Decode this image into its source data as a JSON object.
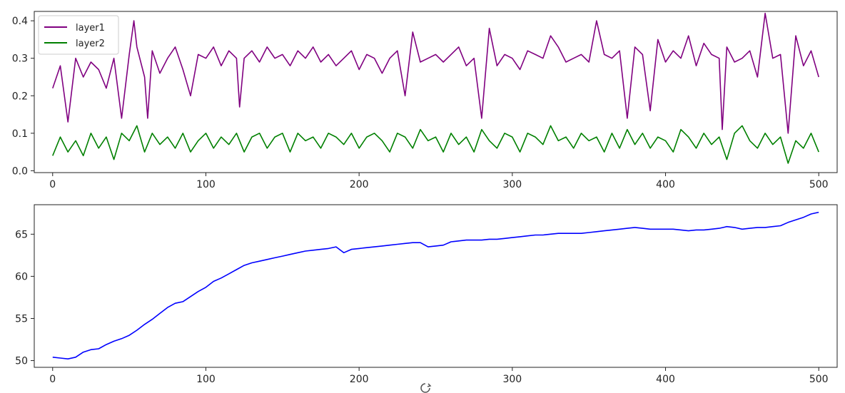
{
  "chart_data": [
    {
      "type": "line",
      "title": "",
      "xlabel": "",
      "ylabel": "",
      "xlim": [
        -12,
        512
      ],
      "ylim": [
        -0.005,
        0.425
      ],
      "xticks": [
        0,
        100,
        200,
        300,
        400,
        500
      ],
      "yticks": [
        0.0,
        0.1,
        0.2,
        0.3,
        0.4
      ],
      "xtick_labels": [
        "0",
        "100",
        "200",
        "300",
        "400",
        "500"
      ],
      "ytick_labels": [
        "0.0",
        "0.1",
        "0.2",
        "0.3",
        "0.4"
      ],
      "grid": false,
      "legend_position": "top-left",
      "series": [
        {
          "name": "layer1",
          "color": "#800080",
          "x": [
            0,
            5,
            10,
            15,
            20,
            25,
            30,
            35,
            40,
            45,
            50,
            53,
            55,
            60,
            62,
            65,
            70,
            75,
            80,
            85,
            90,
            95,
            100,
            105,
            110,
            115,
            120,
            122,
            125,
            130,
            135,
            140,
            145,
            150,
            155,
            160,
            165,
            170,
            175,
            180,
            185,
            190,
            195,
            200,
            205,
            210,
            215,
            220,
            225,
            230,
            235,
            240,
            245,
            250,
            255,
            260,
            265,
            270,
            275,
            280,
            285,
            290,
            295,
            300,
            305,
            310,
            315,
            320,
            325,
            330,
            335,
            340,
            345,
            350,
            355,
            360,
            365,
            370,
            375,
            380,
            385,
            390,
            395,
            400,
            405,
            410,
            415,
            420,
            425,
            430,
            435,
            437,
            440,
            445,
            450,
            455,
            460,
            465,
            470,
            475,
            480,
            485,
            490,
            495,
            500
          ],
          "y": [
            0.22,
            0.28,
            0.13,
            0.3,
            0.25,
            0.29,
            0.27,
            0.22,
            0.3,
            0.14,
            0.31,
            0.4,
            0.33,
            0.25,
            0.14,
            0.32,
            0.26,
            0.3,
            0.33,
            0.27,
            0.2,
            0.31,
            0.3,
            0.33,
            0.28,
            0.32,
            0.3,
            0.17,
            0.3,
            0.32,
            0.29,
            0.33,
            0.3,
            0.31,
            0.28,
            0.32,
            0.3,
            0.33,
            0.29,
            0.31,
            0.28,
            0.3,
            0.32,
            0.27,
            0.31,
            0.3,
            0.26,
            0.3,
            0.32,
            0.2,
            0.37,
            0.29,
            0.3,
            0.31,
            0.29,
            0.31,
            0.33,
            0.28,
            0.3,
            0.14,
            0.38,
            0.28,
            0.31,
            0.3,
            0.27,
            0.32,
            0.31,
            0.3,
            0.36,
            0.33,
            0.29,
            0.3,
            0.31,
            0.29,
            0.4,
            0.31,
            0.3,
            0.32,
            0.14,
            0.33,
            0.31,
            0.16,
            0.35,
            0.29,
            0.32,
            0.3,
            0.36,
            0.28,
            0.34,
            0.31,
            0.3,
            0.11,
            0.33,
            0.29,
            0.3,
            0.32,
            0.25,
            0.42,
            0.3,
            0.31,
            0.1,
            0.36,
            0.28,
            0.32,
            0.25
          ]
        },
        {
          "name": "layer2",
          "color": "#008000",
          "x": [
            0,
            5,
            10,
            15,
            20,
            25,
            30,
            35,
            40,
            45,
            50,
            55,
            60,
            65,
            70,
            75,
            80,
            85,
            90,
            95,
            100,
            105,
            110,
            115,
            120,
            125,
            130,
            135,
            140,
            145,
            150,
            155,
            160,
            165,
            170,
            175,
            180,
            185,
            190,
            195,
            200,
            205,
            210,
            215,
            220,
            225,
            230,
            235,
            240,
            245,
            250,
            255,
            260,
            265,
            270,
            275,
            280,
            285,
            290,
            295,
            300,
            305,
            310,
            315,
            320,
            325,
            330,
            335,
            340,
            345,
            350,
            355,
            360,
            365,
            370,
            375,
            380,
            385,
            390,
            395,
            400,
            405,
            410,
            415,
            420,
            425,
            430,
            435,
            440,
            445,
            450,
            455,
            460,
            465,
            470,
            475,
            480,
            485,
            490,
            495,
            500
          ],
          "y": [
            0.04,
            0.09,
            0.05,
            0.08,
            0.04,
            0.1,
            0.06,
            0.09,
            0.03,
            0.1,
            0.08,
            0.12,
            0.05,
            0.1,
            0.07,
            0.09,
            0.06,
            0.1,
            0.05,
            0.08,
            0.1,
            0.06,
            0.09,
            0.07,
            0.1,
            0.05,
            0.09,
            0.1,
            0.06,
            0.09,
            0.1,
            0.05,
            0.1,
            0.08,
            0.09,
            0.06,
            0.1,
            0.09,
            0.07,
            0.1,
            0.06,
            0.09,
            0.1,
            0.08,
            0.05,
            0.1,
            0.09,
            0.06,
            0.11,
            0.08,
            0.09,
            0.05,
            0.1,
            0.07,
            0.09,
            0.05,
            0.11,
            0.08,
            0.06,
            0.1,
            0.09,
            0.05,
            0.1,
            0.09,
            0.07,
            0.12,
            0.08,
            0.09,
            0.06,
            0.1,
            0.08,
            0.09,
            0.05,
            0.1,
            0.06,
            0.11,
            0.07,
            0.1,
            0.06,
            0.09,
            0.08,
            0.05,
            0.11,
            0.09,
            0.06,
            0.1,
            0.07,
            0.09,
            0.03,
            0.1,
            0.12,
            0.08,
            0.06,
            0.1,
            0.07,
            0.09,
            0.02,
            0.08,
            0.06,
            0.1,
            0.05
          ]
        }
      ]
    },
    {
      "type": "line",
      "title": "",
      "xlabel": "",
      "ylabel": "",
      "xlim": [
        -12,
        512
      ],
      "ylim": [
        49.2,
        68.5
      ],
      "xticks": [
        0,
        100,
        200,
        300,
        400,
        500
      ],
      "yticks": [
        50,
        55,
        60,
        65
      ],
      "xtick_labels": [
        "0",
        "100",
        "200",
        "300",
        "400",
        "500"
      ],
      "ytick_labels": [
        "50",
        "55",
        "60",
        "65"
      ],
      "grid": false,
      "series": [
        {
          "color": "#0000ff",
          "x": [
            0,
            5,
            10,
            15,
            20,
            25,
            30,
            35,
            40,
            45,
            50,
            55,
            60,
            65,
            70,
            75,
            80,
            85,
            90,
            95,
            100,
            105,
            110,
            115,
            120,
            125,
            130,
            135,
            140,
            145,
            150,
            155,
            160,
            165,
            170,
            175,
            180,
            185,
            190,
            195,
            200,
            205,
            210,
            215,
            220,
            225,
            230,
            235,
            240,
            245,
            250,
            255,
            260,
            265,
            270,
            275,
            280,
            285,
            290,
            295,
            300,
            305,
            310,
            315,
            320,
            325,
            330,
            335,
            340,
            345,
            350,
            355,
            360,
            365,
            370,
            375,
            380,
            385,
            390,
            395,
            400,
            405,
            410,
            415,
            420,
            425,
            430,
            435,
            440,
            445,
            450,
            455,
            460,
            465,
            470,
            475,
            480,
            485,
            490,
            495,
            500
          ],
          "y": [
            50.4,
            50.3,
            50.2,
            50.4,
            51.0,
            51.3,
            51.4,
            51.9,
            52.3,
            52.6,
            53.0,
            53.6,
            54.3,
            54.9,
            55.6,
            56.3,
            56.8,
            57.0,
            57.6,
            58.2,
            58.7,
            59.4,
            59.8,
            60.3,
            60.8,
            61.3,
            61.6,
            61.8,
            62.0,
            62.2,
            62.4,
            62.6,
            62.8,
            63.0,
            63.1,
            63.2,
            63.3,
            63.5,
            62.8,
            63.2,
            63.3,
            63.4,
            63.5,
            63.6,
            63.7,
            63.8,
            63.9,
            64.0,
            64.0,
            63.5,
            63.6,
            63.7,
            64.1,
            64.2,
            64.3,
            64.3,
            64.3,
            64.4,
            64.4,
            64.5,
            64.6,
            64.7,
            64.8,
            64.9,
            64.9,
            65.0,
            65.1,
            65.1,
            65.1,
            65.1,
            65.2,
            65.3,
            65.4,
            65.5,
            65.6,
            65.7,
            65.8,
            65.7,
            65.6,
            65.6,
            65.6,
            65.6,
            65.5,
            65.4,
            65.5,
            65.5,
            65.6,
            65.7,
            65.9,
            65.8,
            65.6,
            65.7,
            65.8,
            65.8,
            65.9,
            66.0,
            66.4,
            66.7,
            67.0,
            67.4,
            67.6
          ]
        }
      ]
    }
  ]
}
